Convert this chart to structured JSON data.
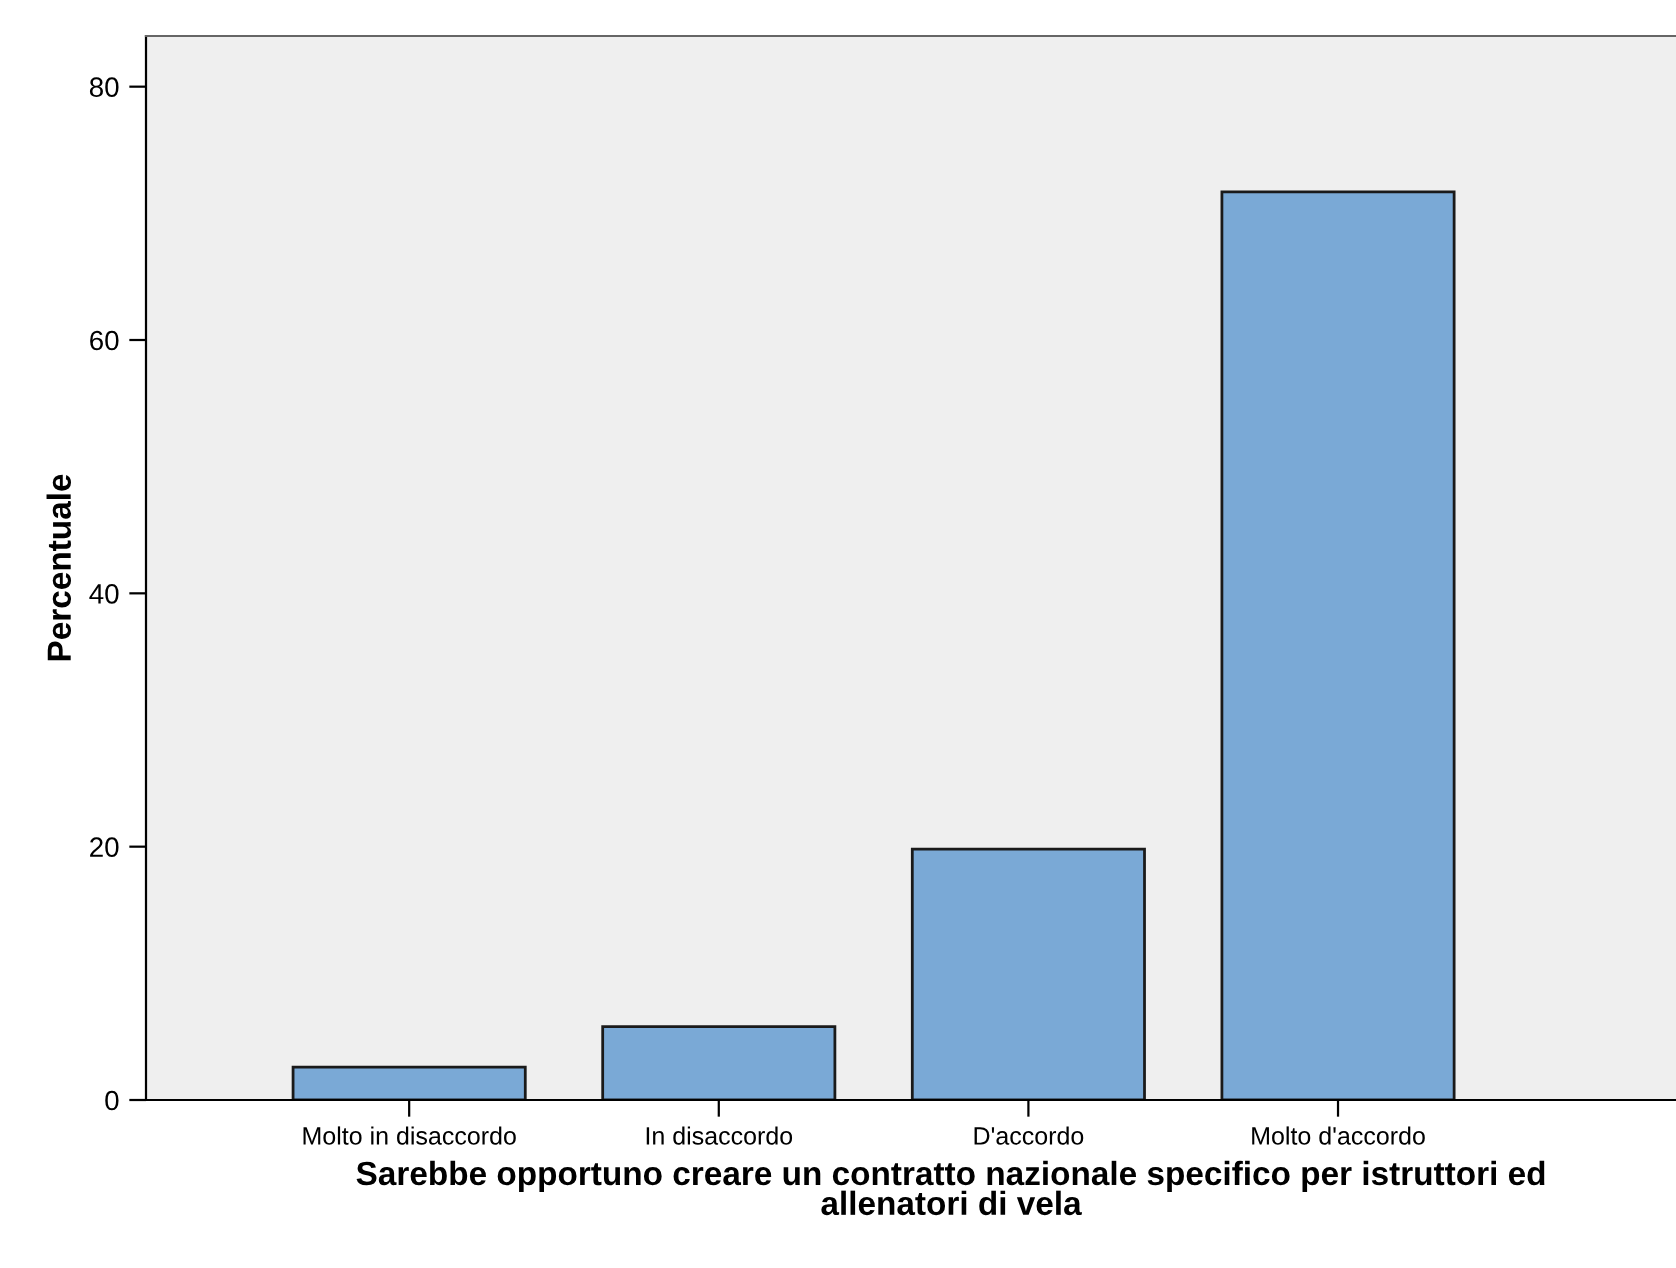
{
  "chart_data": {
    "type": "bar",
    "xlabel": "Sarebbe opportuno creare un contratto nazionale specifico per istruttori ed\nallenatori di vela",
    "ylabel": "Percentuale",
    "categories": [
      "Molto in disaccordo",
      "In disaccordo",
      "D'accordo",
      "Molto d'accordo"
    ],
    "values": [
      2.6,
      5.8,
      19.8,
      71.7
    ],
    "color": "#7aa9d6",
    "ylim": [
      0,
      84
    ],
    "yticks": [
      0,
      20,
      40,
      60,
      80
    ],
    "grid": false
  }
}
